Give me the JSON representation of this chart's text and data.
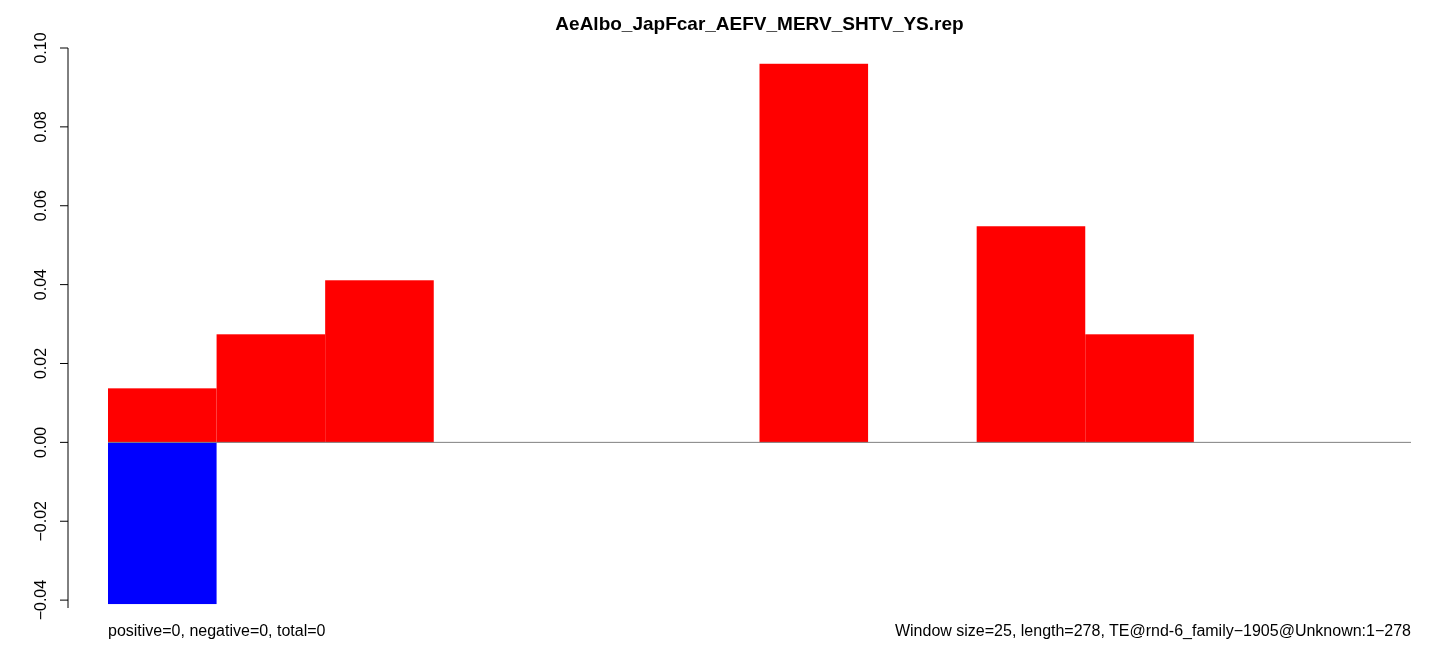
{
  "chart_data": {
    "type": "bar",
    "title": "AeAlbo_JapFcar_AEFV_MERV_SHTV_YS.rep",
    "categories": [
      null,
      null,
      null,
      null,
      null,
      null,
      null,
      null,
      null,
      null,
      null,
      null
    ],
    "series": [
      {
        "color": "#ff0000",
        "values": [
          0.0137,
          0.0274,
          0.0411,
          0,
          0,
          0,
          0.096,
          0,
          0.0548,
          0.0274,
          0,
          0
        ]
      },
      {
        "color": "#0000ff",
        "values": [
          -0.041,
          0,
          0,
          0,
          0,
          0,
          0,
          0,
          0,
          0,
          0,
          0
        ]
      }
    ],
    "ylim": [
      -0.042,
      0.1
    ],
    "yticks": [
      {
        "value": -0.04,
        "label": "−0.04"
      },
      {
        "value": -0.02,
        "label": "−0.02"
      },
      {
        "value": 0,
        "label": "0.00"
      },
      0.02,
      0.04,
      0.06,
      0.08,
      {
        "value": 0.1,
        "label": "0.10"
      }
    ],
    "ref_lines": [
      {
        "axis": "y",
        "value": 0,
        "color": "#808080"
      }
    ],
    "annotations": [
      "positive=0, negative=0, total=0",
      "Window size=25, length=278, TE@rnd-6_family−1905@Unknown:1−278"
    ]
  }
}
